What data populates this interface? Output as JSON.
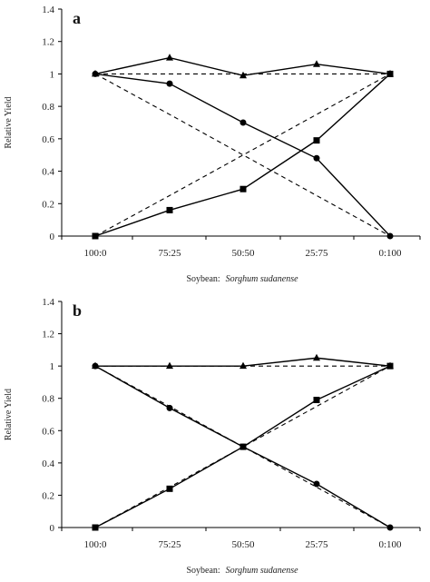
{
  "chart_data": [
    {
      "type": "line",
      "panel_label": "a",
      "categories": [
        "100:0",
        "75:25",
        "50:50",
        "25:75",
        "0:100"
      ],
      "ylabel": "Relative Yield",
      "xlabel_prefix": "Soybean:",
      "xlabel_species": "Sorghum sudanense",
      "ylim": [
        0,
        1.4
      ],
      "yticks": [
        "0",
        "0.2",
        "0.4",
        "0.6",
        "0.8",
        "1",
        "1.2",
        "1.4"
      ],
      "grid": false,
      "series": [
        {
          "marker": "triangle",
          "dashed": false,
          "values": [
            1.0,
            1.1,
            0.99,
            1.06,
            1.0
          ]
        },
        {
          "marker": "circle",
          "dashed": false,
          "values": [
            1.0,
            0.94,
            0.7,
            0.48,
            0.0
          ]
        },
        {
          "marker": "square",
          "dashed": false,
          "values": [
            0.0,
            0.16,
            0.29,
            0.59,
            1.0
          ]
        },
        {
          "marker": "none",
          "dashed": true,
          "values": [
            1.0,
            1.0,
            1.0,
            1.0,
            1.0
          ]
        },
        {
          "marker": "none",
          "dashed": true,
          "values": [
            1.0,
            0.75,
            0.5,
            0.25,
            0.0
          ]
        },
        {
          "marker": "none",
          "dashed": true,
          "values": [
            0.0,
            0.25,
            0.5,
            0.75,
            1.0
          ]
        }
      ]
    },
    {
      "type": "line",
      "panel_label": "b",
      "categories": [
        "100:0",
        "75:25",
        "50:50",
        "25:75",
        "0:100"
      ],
      "ylabel": "Relative Yield",
      "xlabel_prefix": "Soybean:",
      "xlabel_species": "Sorghum sudanense",
      "ylim": [
        0,
        1.4
      ],
      "yticks": [
        "0",
        "0.2",
        "0.4",
        "0.6",
        "0.8",
        "1",
        "1.2",
        "1.4"
      ],
      "grid": false,
      "series": [
        {
          "marker": "triangle",
          "dashed": false,
          "values": [
            1.0,
            1.0,
            1.0,
            1.05,
            1.0
          ]
        },
        {
          "marker": "circle",
          "dashed": false,
          "values": [
            1.0,
            0.74,
            0.5,
            0.27,
            0.0
          ]
        },
        {
          "marker": "square",
          "dashed": false,
          "values": [
            0.0,
            0.24,
            0.5,
            0.79,
            1.0
          ]
        },
        {
          "marker": "none",
          "dashed": true,
          "values": [
            1.0,
            1.0,
            1.0,
            1.0,
            1.0
          ]
        },
        {
          "marker": "none",
          "dashed": true,
          "values": [
            1.0,
            0.75,
            0.5,
            0.25,
            0.0
          ]
        },
        {
          "marker": "none",
          "dashed": true,
          "values": [
            0.0,
            0.25,
            0.5,
            0.75,
            1.0
          ]
        }
      ]
    }
  ]
}
